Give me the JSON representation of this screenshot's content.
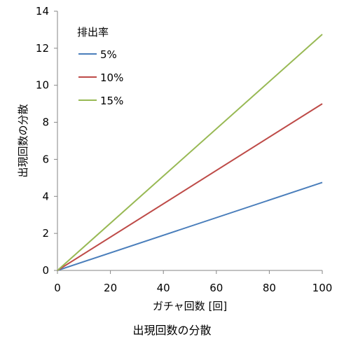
{
  "caption": "出現回数の分散",
  "chart_data": {
    "type": "line",
    "xlabel": "ガチャ回数 [回]",
    "ylabel": "出現回数の分散",
    "xlim": [
      0,
      100
    ],
    "ylim": [
      0,
      14
    ],
    "xticks": [
      0,
      20,
      40,
      60,
      80,
      100
    ],
    "yticks": [
      0,
      2,
      4,
      6,
      8,
      10,
      12,
      14
    ],
    "grid": false,
    "legend": {
      "title": "排出率",
      "position": "top-left"
    },
    "x": [
      0,
      100
    ],
    "series": [
      {
        "name": "5%",
        "color": "#4a7ebb",
        "values": [
          0,
          4.75
        ]
      },
      {
        "name": "10%",
        "color": "#be4b48",
        "values": [
          0,
          9.0
        ]
      },
      {
        "name": "15%",
        "color": "#98b954",
        "values": [
          0,
          12.75
        ]
      }
    ]
  }
}
